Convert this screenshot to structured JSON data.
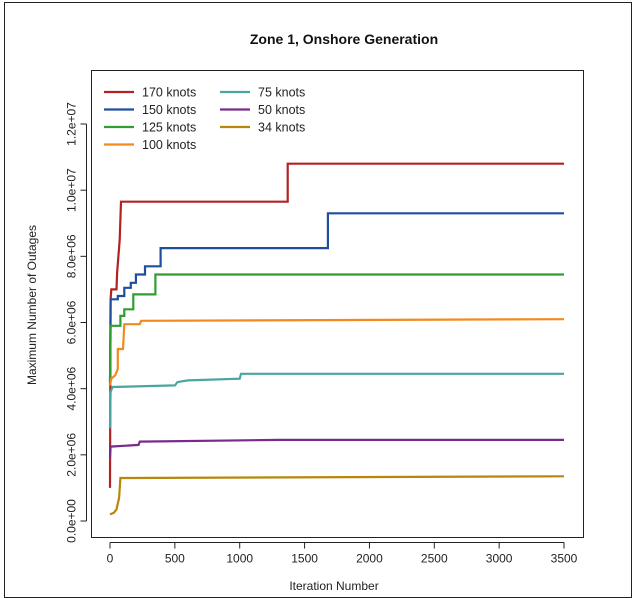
{
  "chart_data": {
    "type": "line",
    "title": "Zone 1, Onshore Generation",
    "xlabel": "Iteration Number",
    "ylabel": "Maximum Number of Outages",
    "xlim": [
      0,
      3560
    ],
    "ylim": [
      0,
      12500000
    ],
    "x_ticks": [
      0,
      500,
      1000,
      1500,
      2000,
      2500,
      3000,
      3500
    ],
    "x_tick_labels": [
      "0",
      "500",
      "1000",
      "1500",
      "2000",
      "2500",
      "3000",
      "3500"
    ],
    "y_ticks": [
      0,
      2000000,
      4000000,
      6000000,
      8000000,
      10000000,
      12000000
    ],
    "y_tick_labels": [
      "0.0e+00",
      "2.0e+06",
      "4.0e+06",
      "6.0e+06",
      "8.0e+06",
      "1.0e+07",
      "1.2e+07"
    ],
    "grid": false,
    "legend_position": "top-left",
    "series": [
      {
        "name": "170 knots",
        "color": "#b22222",
        "points": [
          [
            0,
            1000000
          ],
          [
            5,
            6700000
          ],
          [
            10,
            7000000
          ],
          [
            50,
            7000000
          ],
          [
            55,
            7500000
          ],
          [
            65,
            8000000
          ],
          [
            75,
            8500000
          ],
          [
            85,
            9650000
          ],
          [
            1370,
            9650000
          ],
          [
            1370,
            10800000
          ],
          [
            3500,
            10800000
          ]
        ]
      },
      {
        "name": "150 knots",
        "color": "#1f4e9c",
        "points": [
          [
            0,
            4100000
          ],
          [
            5,
            6700000
          ],
          [
            60,
            6700000
          ],
          [
            60,
            6800000
          ],
          [
            110,
            6800000
          ],
          [
            110,
            7050000
          ],
          [
            160,
            7050000
          ],
          [
            160,
            7200000
          ],
          [
            200,
            7200000
          ],
          [
            200,
            7450000
          ],
          [
            270,
            7450000
          ],
          [
            270,
            7700000
          ],
          [
            390,
            7700000
          ],
          [
            390,
            8250000
          ],
          [
            1680,
            8250000
          ],
          [
            1680,
            9300000
          ],
          [
            3500,
            9300000
          ]
        ]
      },
      {
        "name": "125 knots",
        "color": "#2e9e33",
        "points": [
          [
            0,
            4200000
          ],
          [
            5,
            5900000
          ],
          [
            80,
            5900000
          ],
          [
            80,
            6200000
          ],
          [
            110,
            6200000
          ],
          [
            110,
            6400000
          ],
          [
            180,
            6400000
          ],
          [
            180,
            6850000
          ],
          [
            350,
            6850000
          ],
          [
            350,
            7450000
          ],
          [
            3500,
            7450000
          ]
        ]
      },
      {
        "name": "100 knots",
        "color": "#f28a1e",
        "points": [
          [
            0,
            4100000
          ],
          [
            10,
            4300000
          ],
          [
            40,
            4400000
          ],
          [
            60,
            4600000
          ],
          [
            60,
            5200000
          ],
          [
            100,
            5200000
          ],
          [
            110,
            5950000
          ],
          [
            230,
            5950000
          ],
          [
            240,
            6050000
          ],
          [
            3500,
            6100000
          ]
        ]
      },
      {
        "name": "75 knots",
        "color": "#4aa5a0",
        "points": [
          [
            0,
            2800000
          ],
          [
            5,
            3900000
          ],
          [
            20,
            4050000
          ],
          [
            500,
            4100000
          ],
          [
            520,
            4200000
          ],
          [
            600,
            4250000
          ],
          [
            1000,
            4300000
          ],
          [
            1010,
            4450000
          ],
          [
            3500,
            4450000
          ]
        ]
      },
      {
        "name": "50 knots",
        "color": "#7a2a8c",
        "points": [
          [
            0,
            1900000
          ],
          [
            5,
            2250000
          ],
          [
            220,
            2300000
          ],
          [
            230,
            2400000
          ],
          [
            1300,
            2450000
          ],
          [
            3500,
            2450000
          ]
        ]
      },
      {
        "name": "34 knots",
        "color": "#b8860b",
        "points": [
          [
            0,
            200000
          ],
          [
            30,
            250000
          ],
          [
            50,
            350000
          ],
          [
            70,
            700000
          ],
          [
            80,
            1300000
          ],
          [
            3500,
            1350000
          ]
        ]
      }
    ]
  }
}
